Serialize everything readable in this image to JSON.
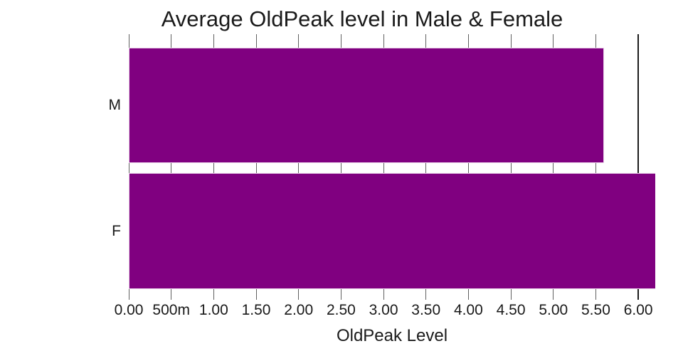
{
  "chart_data": {
    "type": "bar",
    "orientation": "horizontal",
    "title": "Average OldPeak level in Male & Female",
    "xlabel": "OldPeak Level",
    "ylabel": "",
    "categories": [
      "M",
      "F"
    ],
    "values": [
      5.6,
      6.2
    ],
    "xlim": [
      0,
      6.2
    ],
    "xticks": [
      {
        "value": 0.0,
        "label": "0.00"
      },
      {
        "value": 0.5,
        "label": "500m"
      },
      {
        "value": 1.0,
        "label": "1.00"
      },
      {
        "value": 1.5,
        "label": "1.50"
      },
      {
        "value": 2.0,
        "label": "2.00"
      },
      {
        "value": 2.5,
        "label": "2.50"
      },
      {
        "value": 3.0,
        "label": "3.00"
      },
      {
        "value": 3.5,
        "label": "3.50"
      },
      {
        "value": 4.0,
        "label": "4.00"
      },
      {
        "value": 4.5,
        "label": "4.50"
      },
      {
        "value": 5.0,
        "label": "5.00"
      },
      {
        "value": 5.5,
        "label": "5.50"
      },
      {
        "value": 6.0,
        "label": "6.00"
      }
    ],
    "grid": "vertical",
    "legend": "none",
    "colors": {
      "bar_fill": "#800080",
      "bar_edge": "#e7cde7",
      "gridline": "#606060",
      "gridline_end": "#1c1c1c",
      "text": "#1a1a1a",
      "background": "#ffffff"
    }
  }
}
